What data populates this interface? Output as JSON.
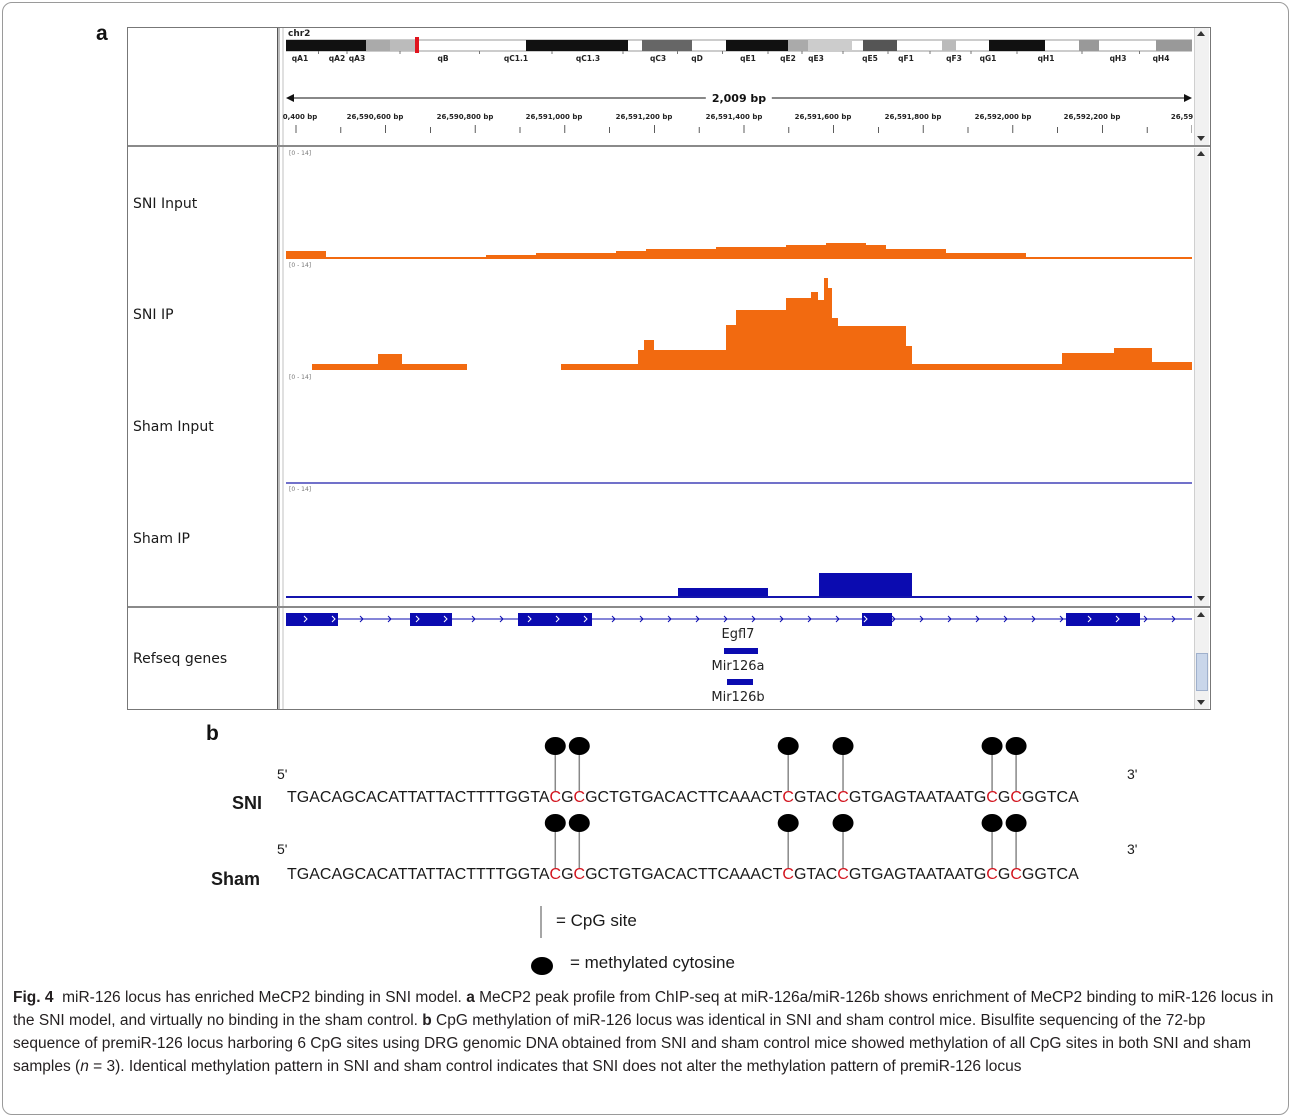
{
  "panel_a_letter": "a",
  "panel_b_letter": "b",
  "igv": {
    "chromosome": "chr2",
    "bands": [
      "qA1",
      "qA2",
      "qA3",
      "qB",
      "qC1.1",
      "qC1.3",
      "qC3",
      "qD",
      "qE1",
      "qE2",
      "qE3",
      "qE5",
      "qF1",
      "qF3",
      "qG1",
      "qH1",
      "qH3",
      "qH4"
    ],
    "span_label": "2,009 bp",
    "ticks": [
      "0,400 bp",
      "26,590,600 bp",
      "26,590,800 bp",
      "26,591,000 bp",
      "26,591,200 bp",
      "26,591,400 bp",
      "26,591,600 bp",
      "26,591,800 bp",
      "26,592,000 bp",
      "26,592,200 bp",
      "26,59"
    ],
    "data_range": "[0 - 14]",
    "tracks": [
      {
        "name": "SNI Input",
        "color": "#f26a10"
      },
      {
        "name": "SNI IP",
        "color": "#f26a10"
      },
      {
        "name": "Sham Input",
        "color": "#1c1caa"
      },
      {
        "name": "Sham IP",
        "color": "#1c1caa"
      }
    ],
    "refseq_track": "Refseq genes",
    "genes": [
      "Egfl7",
      "Mir126a",
      "Mir126b"
    ],
    "gene_color": "#0b0bb0"
  },
  "panel_b": {
    "five_prime": "5'",
    "three_prime": "3'",
    "rows": [
      {
        "name": "SNI",
        "parts": [
          "TGACAGCACATTATTACTTTTGGTA",
          "C",
          "G",
          "C",
          "GCTGTGACACTTCAAACT",
          "C",
          "GTAC",
          "C",
          "GTGAGTAATAATG",
          "C",
          "G",
          "C",
          "GGTCA"
        ]
      },
      {
        "name": "Sham",
        "parts": [
          "TGACAGCACATTATTACTTTTGGTA",
          "C",
          "G",
          "C",
          "GCTGTGACACTTCAAACT",
          "C",
          "GTAC",
          "C",
          "GTGAGTAATAATG",
          "C",
          "G",
          "C",
          "GGTCA"
        ]
      }
    ],
    "legend_cpg": "= CpG site",
    "legend_methylated": "= methylated cytosine",
    "cpg_color": "#d2141e"
  },
  "caption": {
    "fig_label": "Fig. 4",
    "title": "miR-126 locus has enriched MeCP2 binding in SNI model.",
    "a_label": "a",
    "a_text": "MeCP2 peak profile from ChIP-seq at miR-126a/miR-126b shows enrichment of MeCP2 binding to miR-126 locus in the SNI model, and virtually no binding in the sham control.",
    "b_label": "b",
    "b_text": "CpG methylation of miR-126 locus was identical in SNI and sham control mice. Bisulfite sequencing of the 72-bp sequence of premiR-126 locus harboring 6 CpG sites using DRG genomic DNA obtained from SNI and sham control mice showed methylation of all CpG sites in both SNI and sham samples (n = 3). Identical methylation pattern in SNI and sham control indicates that SNI does not alter the methylation pattern of premiR-126 locus"
  }
}
